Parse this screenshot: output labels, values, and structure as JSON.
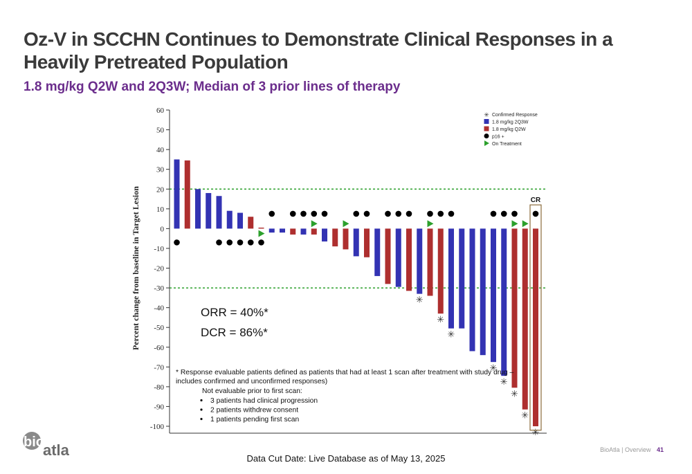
{
  "slide": {
    "title": "Oz-V in SCCHN Continues to Demonstrate Clinical Responses in a Heavily Pretreated Population",
    "subtitle": "1.8 mg/kg Q2W and 2Q3W; Median of 3 prior lines of therapy",
    "data_cut": "Data Cut Date: Live Database as of May 13, 2025",
    "footer_company": "BioAtla",
    "footer_section": "Overview",
    "page_number": "41",
    "logo_text_bio": "bio",
    "logo_text_atla": "atla"
  },
  "chart_data": {
    "type": "bar",
    "ylabel": "Percent change from baseline in Target Lesion",
    "ylim": [
      -100,
      60
    ],
    "yticks": [
      60,
      50,
      40,
      30,
      20,
      10,
      0,
      -10,
      -20,
      -30,
      -40,
      -50,
      -60,
      -70,
      -80,
      -90,
      -100
    ],
    "reference_lines": [
      20,
      -30
    ],
    "legend": {
      "placement": "top-right",
      "items": [
        {
          "symbol": "asterisk",
          "label": "Confirmed Response"
        },
        {
          "symbol": "blue-square",
          "label": "1.8 mg/kg 2Q3W"
        },
        {
          "symbol": "red-square",
          "label": "1.8 mg/kg Q2W"
        },
        {
          "symbol": "black-circle",
          "label": "p16 +"
        },
        {
          "symbol": "green-triangle",
          "label": "On Treatment"
        }
      ]
    },
    "colors": {
      "2Q3W": "#3333b3",
      "Q2W": "#ae2f2f",
      "ref_line": "#2ca02c",
      "on_treatment": "#2ca02c"
    },
    "patients": [
      {
        "value": 35,
        "arm": "2Q3W",
        "p16": "below",
        "on_treatment": false,
        "confirmed": false
      },
      {
        "value": 34.5,
        "arm": "Q2W",
        "p16": "",
        "on_treatment": false,
        "confirmed": false
      },
      {
        "value": 20,
        "arm": "2Q3W",
        "p16": "",
        "on_treatment": false,
        "confirmed": false
      },
      {
        "value": 18,
        "arm": "2Q3W",
        "p16": "",
        "on_treatment": false,
        "confirmed": false
      },
      {
        "value": 16.5,
        "arm": "2Q3W",
        "p16": "below",
        "on_treatment": false,
        "confirmed": false
      },
      {
        "value": 9,
        "arm": "2Q3W",
        "p16": "below",
        "on_treatment": false,
        "confirmed": false
      },
      {
        "value": 8,
        "arm": "2Q3W",
        "p16": "below",
        "on_treatment": false,
        "confirmed": false
      },
      {
        "value": 6,
        "arm": "Q2W",
        "p16": "below",
        "on_treatment": false,
        "confirmed": false
      },
      {
        "value": 0.5,
        "arm": "Q2W",
        "p16": "below",
        "on_treatment": true,
        "confirmed": false
      },
      {
        "value": -2,
        "arm": "2Q3W",
        "p16": "above",
        "on_treatment": false,
        "confirmed": false
      },
      {
        "value": -2,
        "arm": "2Q3W",
        "p16": "",
        "on_treatment": false,
        "confirmed": false
      },
      {
        "value": -3,
        "arm": "Q2W",
        "p16": "above",
        "on_treatment": false,
        "confirmed": false
      },
      {
        "value": -3,
        "arm": "2Q3W",
        "p16": "above",
        "on_treatment": false,
        "confirmed": false
      },
      {
        "value": -3,
        "arm": "Q2W",
        "p16": "above",
        "on_treatment": true,
        "confirmed": false
      },
      {
        "value": -6.5,
        "arm": "2Q3W",
        "p16": "above",
        "on_treatment": false,
        "confirmed": false
      },
      {
        "value": -9,
        "arm": "Q2W",
        "p16": "",
        "on_treatment": false,
        "confirmed": false
      },
      {
        "value": -10.5,
        "arm": "Q2W",
        "p16": "",
        "on_treatment": true,
        "confirmed": false
      },
      {
        "value": -14,
        "arm": "2Q3W",
        "p16": "above",
        "on_treatment": false,
        "confirmed": false
      },
      {
        "value": -14.5,
        "arm": "Q2W",
        "p16": "above",
        "on_treatment": false,
        "confirmed": false
      },
      {
        "value": -24,
        "arm": "2Q3W",
        "p16": "",
        "on_treatment": false,
        "confirmed": false
      },
      {
        "value": -28,
        "arm": "Q2W",
        "p16": "above",
        "on_treatment": false,
        "confirmed": false
      },
      {
        "value": -29.5,
        "arm": "2Q3W",
        "p16": "above",
        "on_treatment": false,
        "confirmed": false
      },
      {
        "value": -31.5,
        "arm": "Q2W",
        "p16": "above",
        "on_treatment": false,
        "confirmed": false
      },
      {
        "value": -33,
        "arm": "2Q3W",
        "p16": "",
        "on_treatment": false,
        "confirmed": true
      },
      {
        "value": -34,
        "arm": "Q2W",
        "p16": "above",
        "on_treatment": true,
        "confirmed": false
      },
      {
        "value": -43,
        "arm": "Q2W",
        "p16": "above",
        "on_treatment": false,
        "confirmed": true
      },
      {
        "value": -50.5,
        "arm": "2Q3W",
        "p16": "above",
        "on_treatment": false,
        "confirmed": true
      },
      {
        "value": -50.5,
        "arm": "2Q3W",
        "p16": "",
        "on_treatment": false,
        "confirmed": false
      },
      {
        "value": -62,
        "arm": "2Q3W",
        "p16": "",
        "on_treatment": false,
        "confirmed": false
      },
      {
        "value": -64,
        "arm": "2Q3W",
        "p16": "",
        "on_treatment": false,
        "confirmed": false
      },
      {
        "value": -67.5,
        "arm": "2Q3W",
        "p16": "above",
        "on_treatment": false,
        "confirmed": true
      },
      {
        "value": -74.5,
        "arm": "2Q3W",
        "p16": "above",
        "on_treatment": false,
        "confirmed": true
      },
      {
        "value": -80.5,
        "arm": "Q2W",
        "p16": "above",
        "on_treatment": true,
        "confirmed": true
      },
      {
        "value": -91.5,
        "arm": "Q2W",
        "p16": "",
        "on_treatment": true,
        "confirmed": true
      },
      {
        "value": -100,
        "arm": "Q2W",
        "p16": "above",
        "on_treatment": false,
        "confirmed": true,
        "label": "CR"
      }
    ],
    "annotations": {
      "orr": "ORR = 40%*",
      "dcr": "DCR = 86%*",
      "footnote_line1": "* Response evaluable patients defined as patients that had at least 1 scan after treatment with study drug –",
      "footnote_line2": "includes confirmed and unconfirmed responses)",
      "not_evaluable_header": "Not evaluable prior to first scan:",
      "not_evaluable_items": [
        "3 patients had clinical progression",
        "2 patients withdrew consent",
        "1 patients pending first scan"
      ]
    }
  }
}
